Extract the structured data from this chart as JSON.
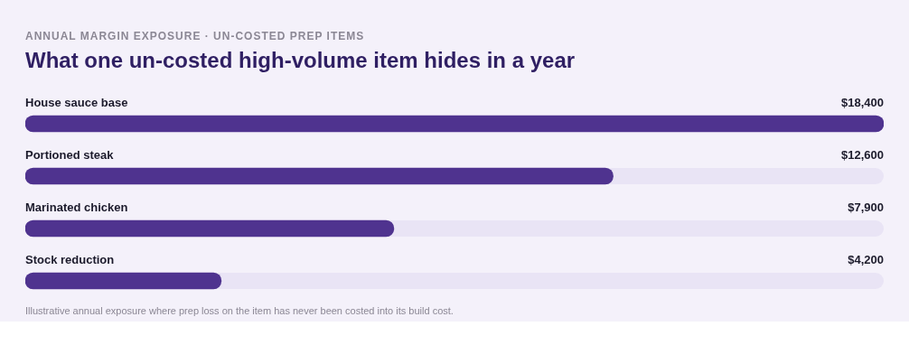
{
  "chart_data": {
    "type": "bar",
    "orientation": "horizontal",
    "subtitle": "ANNUAL MARGIN EXPOSURE · UN-COSTED PREP ITEMS",
    "title": "What one un-costed high-volume item hides in a year",
    "categories": [
      "House sauce base",
      "Portioned steak",
      "Marinated chicken",
      "Stock reduction"
    ],
    "values": [
      18400,
      12600,
      7900,
      4200
    ],
    "value_labels": [
      "$18,400",
      "$12,600",
      "$7,900",
      "$4,200"
    ],
    "color": "#4f338f",
    "xlim": [
      0,
      18400
    ],
    "tick_labels": false,
    "annotations": [
      "Illustrative annual exposure where prep loss on the item has never been costed into its build cost."
    ]
  }
}
